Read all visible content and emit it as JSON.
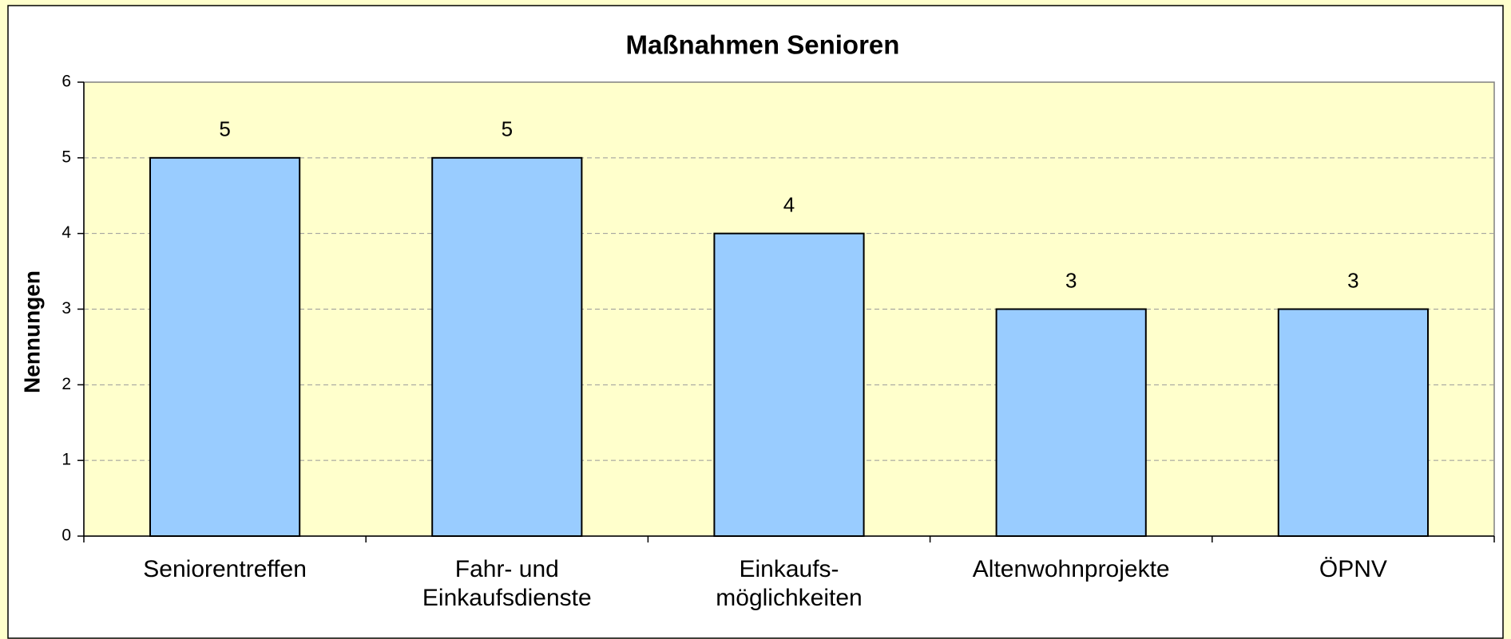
{
  "chart_data": {
    "type": "bar",
    "title": "Maßnahmen Senioren",
    "y_label": "Nennungen",
    "categories": [
      "Seniorentreffen",
      "Fahr- und\nEinkaufsdienste",
      "Einkaufs-\nmöglichkeiten",
      "Altenwohnprojekte",
      "ÖPNV"
    ],
    "values": [
      5,
      5,
      4,
      3,
      3
    ],
    "color": "#99ccff",
    "ylim": [
      0,
      6
    ],
    "yticks": [
      0,
      1,
      2,
      3,
      4,
      5,
      6
    ],
    "grid": true
  }
}
